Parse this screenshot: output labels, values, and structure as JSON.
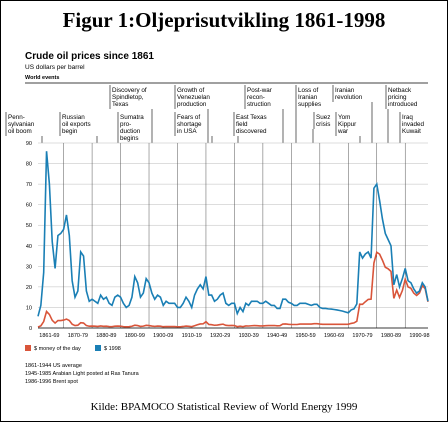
{
  "chart_data": {
    "type": "line",
    "title": "Figur 1:Oljeprisutvikling 1861-1998",
    "subtitle": "Crude oil prices since 1861",
    "unit_label": "US dollars per barrel",
    "events_label": "World events",
    "events": [
      {
        "lines": [
          "Penn-",
          "sylvanian",
          "oil boom"
        ]
      },
      {
        "lines": [
          "Russian",
          "oil exports",
          "begin"
        ]
      },
      {
        "lines": [
          "Discovery of",
          "Spindletop,",
          "Texas"
        ]
      },
      {
        "lines": [
          "Sumatra",
          "pro-",
          "duction",
          "begins"
        ]
      },
      {
        "lines": [
          "Growth of",
          "Venezuelan",
          "production"
        ]
      },
      {
        "lines": [
          "Fears of",
          "shortage",
          "in USA"
        ]
      },
      {
        "lines": [
          "Post-war",
          "recon-",
          "struction"
        ]
      },
      {
        "lines": [
          "East Texas",
          "field",
          "discovered"
        ]
      },
      {
        "lines": [
          "Loss of",
          "Iranian",
          "supplies"
        ]
      },
      {
        "lines": [
          "Suez",
          "crisis"
        ]
      },
      {
        "lines": [
          "Yom",
          "Kippur",
          "war"
        ]
      },
      {
        "lines": [
          "Iranian",
          "revolution"
        ]
      },
      {
        "lines": [
          "Netback",
          "pricing",
          "introduced"
        ]
      },
      {
        "lines": [
          "Iraq",
          "invaded",
          "Kuwait"
        ]
      }
    ],
    "x": [
      1861,
      1862,
      1863,
      1864,
      1865,
      1866,
      1867,
      1868,
      1869,
      1870,
      1871,
      1872,
      1873,
      1874,
      1875,
      1876,
      1877,
      1878,
      1879,
      1880,
      1881,
      1882,
      1883,
      1884,
      1885,
      1886,
      1887,
      1888,
      1889,
      1890,
      1891,
      1892,
      1893,
      1894,
      1895,
      1896,
      1897,
      1898,
      1899,
      1900,
      1901,
      1902,
      1903,
      1904,
      1905,
      1906,
      1907,
      1908,
      1909,
      1910,
      1911,
      1912,
      1913,
      1914,
      1915,
      1916,
      1917,
      1918,
      1919,
      1920,
      1921,
      1922,
      1923,
      1924,
      1925,
      1926,
      1927,
      1928,
      1929,
      1930,
      1931,
      1932,
      1933,
      1934,
      1935,
      1936,
      1937,
      1938,
      1939,
      1940,
      1941,
      1942,
      1943,
      1944,
      1945,
      1946,
      1947,
      1948,
      1949,
      1950,
      1951,
      1952,
      1953,
      1954,
      1955,
      1956,
      1957,
      1958,
      1959,
      1960,
      1961,
      1962,
      1963,
      1964,
      1965,
      1966,
      1967,
      1968,
      1969,
      1970,
      1971,
      1972,
      1973,
      1974,
      1975,
      1976,
      1977,
      1978,
      1979,
      1980,
      1981,
      1982,
      1983,
      1984,
      1985,
      1986,
      1987,
      1988,
      1989,
      1990,
      1991,
      1992,
      1993,
      1994,
      1995,
      1996,
      1997,
      1998
    ],
    "series": [
      {
        "name": "$ money of the day",
        "color": "#d9553a",
        "values": [
          0.49,
          1.05,
          3.15,
          8.06,
          6.59,
          3.74,
          2.41,
          3.63,
          3.64,
          3.86,
          4.34,
          3.64,
          1.83,
          1.17,
          1.35,
          2.56,
          2.42,
          1.19,
          0.86,
          0.95,
          0.86,
          0.78,
          1.0,
          0.84,
          0.88,
          0.71,
          0.67,
          0.88,
          0.94,
          0.87,
          0.67,
          0.56,
          0.64,
          0.84,
          1.36,
          1.18,
          0.79,
          0.91,
          1.29,
          1.19,
          0.96,
          0.8,
          0.94,
          0.86,
          0.62,
          0.73,
          0.72,
          0.72,
          0.7,
          0.61,
          0.61,
          0.74,
          0.95,
          0.81,
          0.64,
          1.1,
          1.56,
          1.98,
          2.01,
          3.07,
          1.73,
          1.61,
          1.34,
          1.43,
          1.68,
          1.88,
          1.3,
          1.17,
          1.27,
          1.19,
          0.65,
          0.87,
          0.67,
          1.0,
          0.97,
          1.09,
          1.18,
          1.13,
          1.02,
          1.02,
          1.14,
          1.19,
          1.2,
          1.21,
          1.05,
          1.12,
          1.9,
          1.99,
          1.78,
          1.71,
          1.71,
          1.71,
          1.93,
          1.93,
          1.93,
          1.93,
          1.9,
          2.08,
          2.08,
          1.9,
          1.8,
          1.8,
          1.8,
          1.8,
          1.8,
          1.8,
          1.8,
          1.8,
          1.8,
          1.8,
          2.24,
          2.48,
          3.29,
          11.58,
          11.53,
          12.8,
          13.92,
          14.02,
          31.61,
          36.83,
          35.93,
          32.97,
          29.55,
          28.78,
          27.56,
          14.43,
          18.44,
          14.92,
          18.23,
          23.73,
          20.0,
          19.32,
          16.97,
          15.82,
          17.02,
          20.67,
          19.09,
          12.72
        ]
      },
      {
        "name": "$ 1998",
        "color": "#1a7fb5",
        "values": [
          5.7,
          11,
          27,
          86,
          70,
          42,
          29,
          45,
          46,
          48,
          55,
          45,
          23,
          15,
          18,
          37,
          35,
          18,
          13,
          14,
          13,
          12,
          16,
          14,
          15,
          12,
          11,
          15,
          16,
          15,
          12,
          10,
          11,
          15,
          25,
          22,
          15,
          17,
          24,
          22,
          17,
          14,
          16,
          15,
          11,
          13,
          12,
          12,
          12,
          10,
          10,
          12,
          15,
          13,
          10,
          16,
          19,
          21,
          19,
          25,
          16,
          16,
          13,
          14,
          16,
          17,
          12,
          11,
          12,
          12,
          7,
          10,
          8,
          12,
          11,
          13,
          13,
          13,
          12,
          12,
          13,
          12,
          11,
          11,
          9.5,
          9.5,
          14,
          14,
          12.5,
          12,
          11,
          11,
          12,
          12,
          12,
          11.5,
          11,
          11.5,
          11.5,
          10,
          9.5,
          9.5,
          9.3,
          9.2,
          9,
          8.8,
          8.5,
          8.2,
          7.8,
          7.4,
          8.8,
          9.3,
          11.7,
          37,
          34,
          36,
          37,
          34,
          68,
          70,
          62,
          53,
          46,
          43,
          40,
          21,
          26,
          20,
          24,
          29,
          23,
          22,
          19,
          17,
          18,
          22,
          20,
          13
        ]
      }
    ],
    "xlim": [
      1861,
      1998
    ],
    "xticks": [
      {
        "value": 1865,
        "label": "1861-69"
      },
      {
        "value": 1875,
        "label": "1870-79"
      },
      {
        "value": 1885,
        "label": "1880-89"
      },
      {
        "value": 1895,
        "label": "1890-99"
      },
      {
        "value": 1905,
        "label": "1900-09"
      },
      {
        "value": 1915,
        "label": "1910-19"
      },
      {
        "value": 1925,
        "label": "1920-29"
      },
      {
        "value": 1935,
        "label": "1930-39"
      },
      {
        "value": 1945,
        "label": "1940-49"
      },
      {
        "value": 1955,
        "label": "1950-59"
      },
      {
        "value": 1965,
        "label": "1960-69"
      },
      {
        "value": 1975,
        "label": "1970-79"
      },
      {
        "value": 1985,
        "label": "1980-89"
      },
      {
        "value": 1995,
        "label": "1990-98"
      }
    ],
    "ylim": [
      0,
      90
    ],
    "yticks": [
      0,
      10,
      20,
      30,
      40,
      50,
      60,
      70,
      80,
      90
    ],
    "grid": true,
    "notes": [
      "1861-1944 US average",
      "1945-1985 Arabian Light posted at Ras Tanura",
      "1986-1996 Brent spot"
    ],
    "source": "Kilde: BPAMOCO Statistical Review of World Energy 1999"
  }
}
